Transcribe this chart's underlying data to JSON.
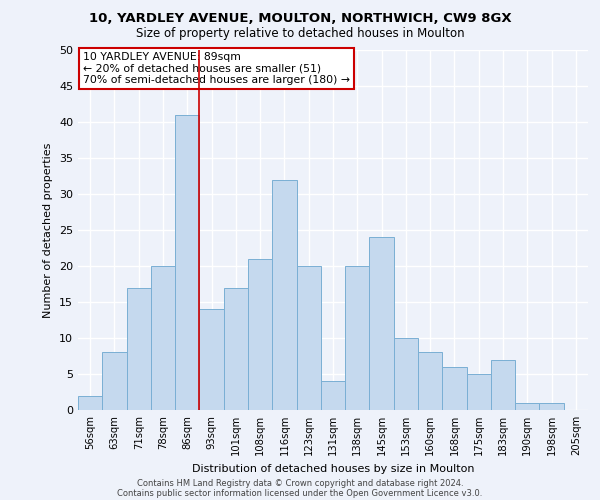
{
  "title1": "10, YARDLEY AVENUE, MOULTON, NORTHWICH, CW9 8GX",
  "title2": "Size of property relative to detached houses in Moulton",
  "xlabel": "Distribution of detached houses by size in Moulton",
  "ylabel": "Number of detached properties",
  "categories": [
    "56sqm",
    "63sqm",
    "71sqm",
    "78sqm",
    "86sqm",
    "93sqm",
    "101sqm",
    "108sqm",
    "116sqm",
    "123sqm",
    "131sqm",
    "138sqm",
    "145sqm",
    "153sqm",
    "160sqm",
    "168sqm",
    "175sqm",
    "183sqm",
    "190sqm",
    "198sqm",
    "205sqm"
  ],
  "values": [
    2,
    8,
    17,
    20,
    41,
    14,
    17,
    21,
    32,
    20,
    4,
    20,
    24,
    10,
    8,
    6,
    5,
    7,
    1,
    1,
    0
  ],
  "bar_color": "#c5d9ee",
  "bar_edge_color": "#7aafd4",
  "red_line_x": 4.5,
  "annotation_title": "10 YARDLEY AVENUE: 89sqm",
  "annotation_line1": "← 20% of detached houses are smaller (51)",
  "annotation_line2": "70% of semi-detached houses are larger (180) →",
  "annotation_box_color": "#ffffff",
  "annotation_box_edge": "#cc0000",
  "footer1": "Contains HM Land Registry data © Crown copyright and database right 2024.",
  "footer2": "Contains public sector information licensed under the Open Government Licence v3.0.",
  "ylim": [
    0,
    50
  ],
  "yticks": [
    0,
    5,
    10,
    15,
    20,
    25,
    30,
    35,
    40,
    45,
    50
  ],
  "background_color": "#eef2fa",
  "grid_color": "#ffffff",
  "title1_fontsize": 9.5,
  "title2_fontsize": 8.5
}
